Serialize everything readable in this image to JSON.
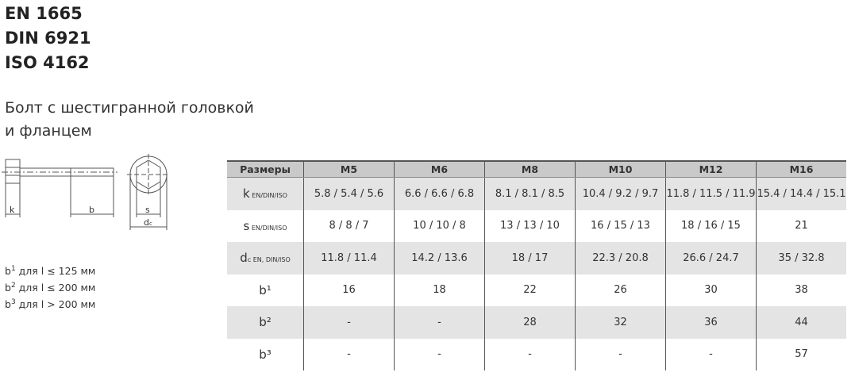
{
  "standards": [
    "EN 1665",
    "DIN 6921",
    "ISO 4162"
  ],
  "title_lines": [
    "Болт с шестигранной головкой",
    "и фланцем"
  ],
  "drawing_labels": {
    "k": "k",
    "b": "b",
    "s": "s",
    "dc": "d",
    "dc_sub": "c"
  },
  "notes": [
    {
      "sup": "1",
      "text": " для l ≤ 125 мм"
    },
    {
      "sup": "2",
      "text": " для l ≤ 200 мм"
    },
    {
      "sup": "3",
      "text": " для l > 200 мм"
    }
  ],
  "table": {
    "headers": [
      "Размеры",
      "M5",
      "M6",
      "M8",
      "M10",
      "M12",
      "M16"
    ],
    "rows": [
      {
        "label": "k",
        "sub": " EN/DIN/ISO",
        "values": [
          "5.8 / 5.4 / 5.6",
          "6.6 / 6.6 / 6.8",
          "8.1 / 8.1 / 8.5",
          "10.4 / 9.2 / 9.7",
          "11.8 / 11.5 / 11.9",
          "15.4 / 14.4 / 15.1"
        ]
      },
      {
        "label": "s",
        "sub": " EN/DIN/ISO",
        "values": [
          "8 / 8 / 7",
          "10 / 10 / 8",
          "13 / 13 / 10",
          "16 / 15 / 13",
          "18 / 16 / 15",
          "21"
        ]
      },
      {
        "label": "d",
        "sub": "c EN, DIN/ISO",
        "values": [
          "11.8 / 11.4",
          "14.2 / 13.6",
          "18 / 17",
          "22.3 / 20.8",
          "26.6 / 24.7",
          "35 / 32.8"
        ]
      },
      {
        "label": "b¹",
        "sub": "",
        "values": [
          "16",
          "18",
          "22",
          "26",
          "30",
          "38"
        ]
      },
      {
        "label": "b²",
        "sub": "",
        "values": [
          "-",
          "-",
          "28",
          "32",
          "36",
          "44"
        ]
      },
      {
        "label": "b³",
        "sub": "",
        "values": [
          "-",
          "-",
          "-",
          "-",
          "-",
          "57"
        ]
      }
    ]
  }
}
